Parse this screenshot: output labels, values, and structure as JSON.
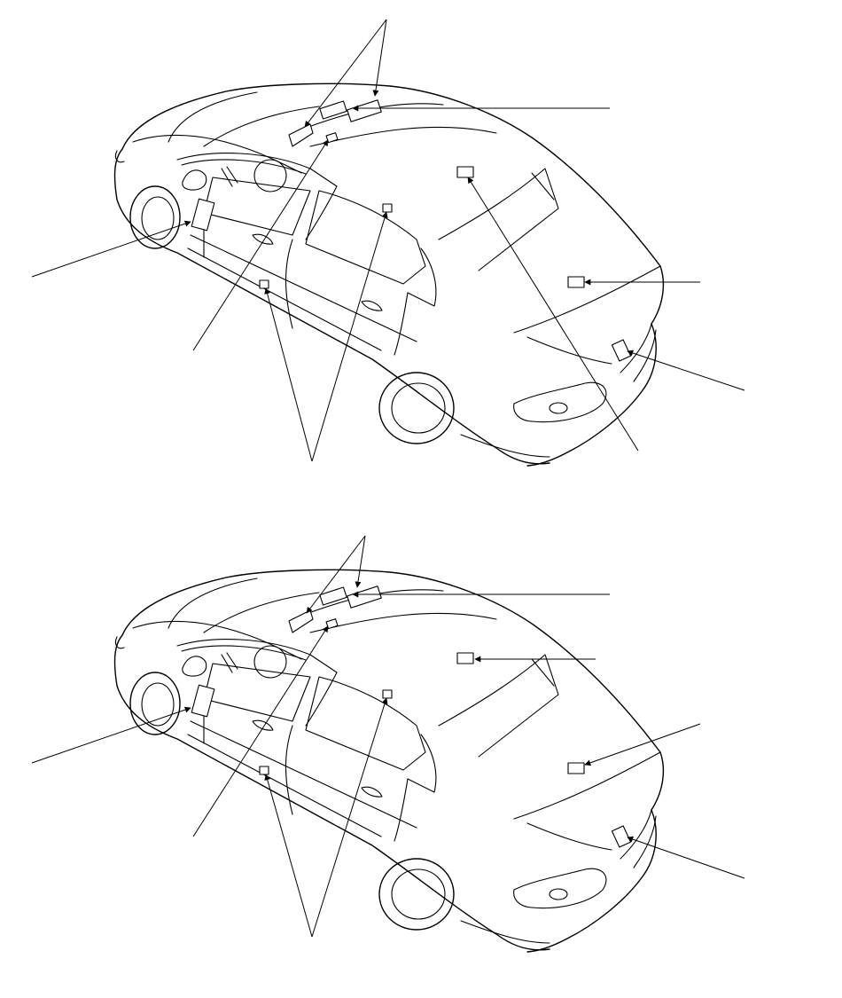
{
  "figure": {
    "background": "#ffffff",
    "line_color": "#000000",
    "views": [
      {
        "id": "upper",
        "component_callouts": 8
      },
      {
        "id": "lower",
        "component_callouts": 8
      }
    ]
  }
}
